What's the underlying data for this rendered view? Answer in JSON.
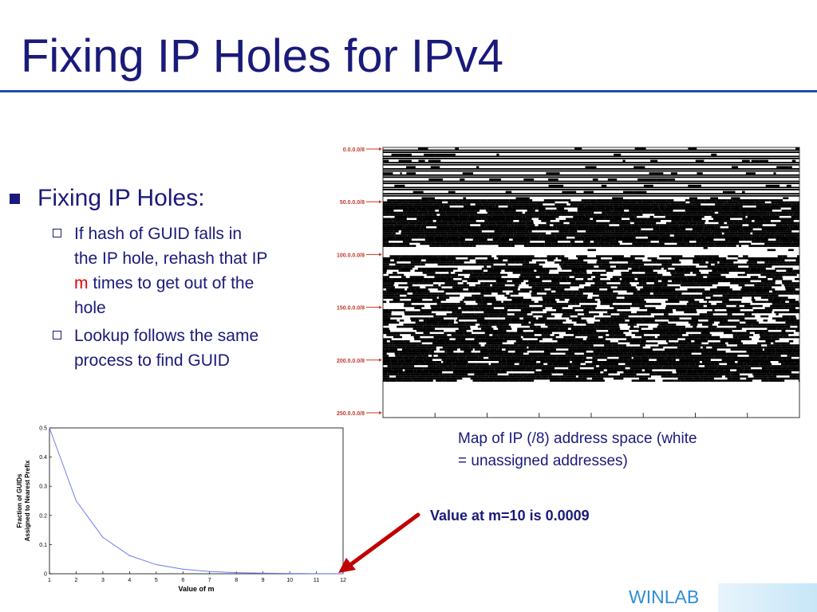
{
  "slide": {
    "title": "Fixing IP Holes for IPv4",
    "bullet": "Fixing IP Holes:",
    "sub1_line1": "If hash of GUID falls in",
    "sub1_line2": "the IP hole, rehash that IP",
    "sub1_m": "m",
    "sub1_line3_rest": " times to get out of the",
    "sub1_line4": "hole",
    "sub2_line1": "Lookup follows the same",
    "sub2_line2": "process to find GUID",
    "map_caption_line1": "Map of IP (/8) address space (white",
    "map_caption_line2": "= unassigned addresses)",
    "value_note": "Value at m=10 is 0.0009",
    "logo": "WINLAB"
  },
  "ip_map": {
    "row_labels": [
      "0.0.0.0/8",
      "50.0.0.0/8",
      "100.0.0.0/8",
      "150.0.0.0/8",
      "200.0.0.0/8",
      "250.0.0.0/8"
    ],
    "label_color": "#c0392b"
  },
  "colors": {
    "title": "#1a1a7a",
    "accent_red": "#e00000",
    "arrow": "#c00000",
    "line": "#6f7cf0",
    "logo": "#2f8fd6"
  },
  "chart_data": {
    "type": "line",
    "x": [
      1,
      2,
      3,
      4,
      5,
      6,
      7,
      8,
      9,
      10,
      11,
      12
    ],
    "series": [
      {
        "values": [
          0.5,
          0.25,
          0.125,
          0.0625,
          0.0313,
          0.0156,
          0.0078,
          0.0039,
          0.002,
          0.0009,
          0.0005,
          0.0002
        ]
      }
    ],
    "xlabel": "Value of m",
    "ylabel_line1": "Fraction of GUIDs",
    "ylabel_line2": "Assigned to Nearest Prefix",
    "xlim": [
      1,
      12
    ],
    "ylim": [
      0,
      0.5
    ],
    "xticks": [
      "1",
      "2",
      "3",
      "4",
      "5",
      "6",
      "7",
      "8",
      "9",
      "10",
      "11",
      "12"
    ],
    "yticks": [
      "0",
      "0.1",
      "0.2",
      "0.3",
      "0.4",
      "0.5"
    ],
    "grid": false
  }
}
